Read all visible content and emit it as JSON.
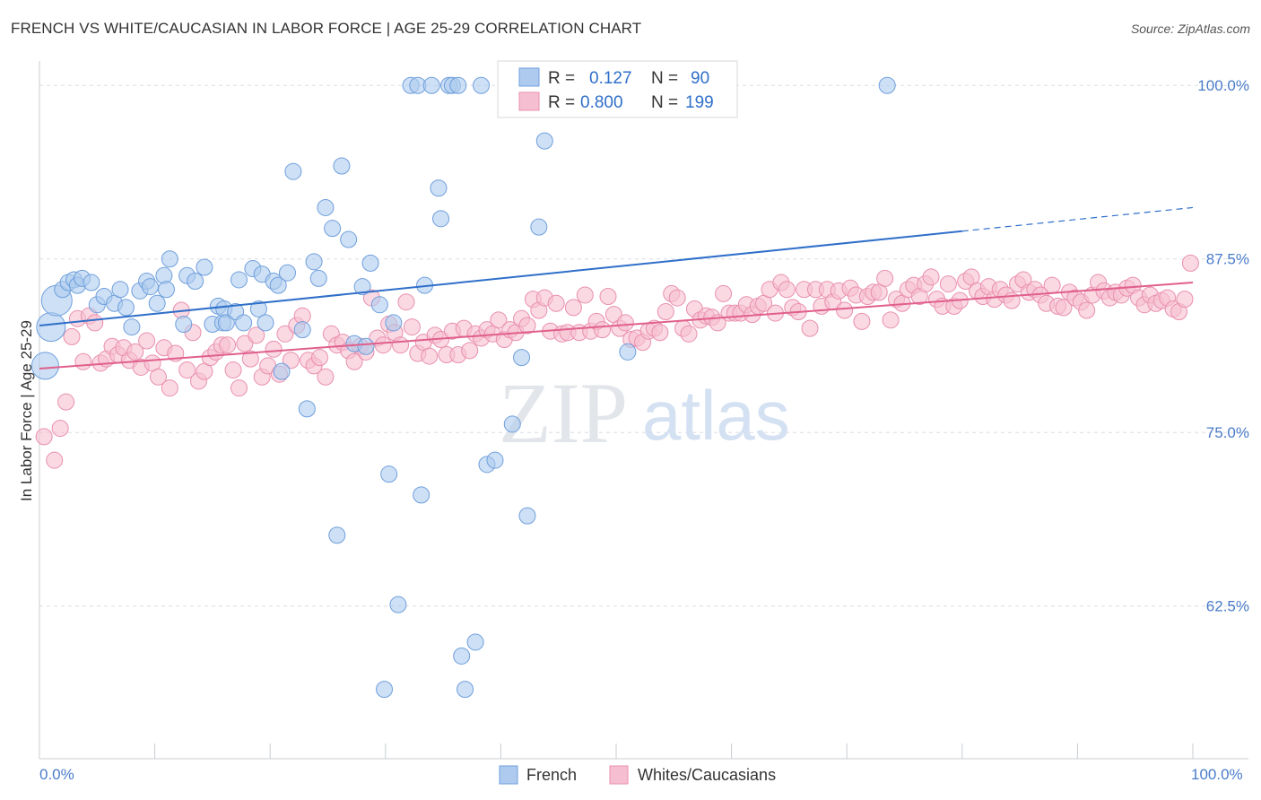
{
  "title": "FRENCH VS WHITE/CAUCASIAN IN LABOR FORCE | AGE 25-29 CORRELATION CHART",
  "source": "Source: ZipAtlas.com",
  "watermark": {
    "zip": "ZIP",
    "atlas": "atlas"
  },
  "colors": {
    "french_fill": "#aecbef",
    "french_stroke": "#6f9fdc",
    "french_line": "#2f6fc9",
    "white_fill": "#f6bfd1",
    "white_stroke": "#e98fae",
    "white_line": "#e05f8c",
    "tick_text": "#4a7cc9",
    "grid": "#d9dde3"
  },
  "legend": {
    "rows": [
      {
        "r_label": "R =",
        "r_value": "0.127",
        "n_label": "N =",
        "n_value": "90"
      },
      {
        "r_label": "R =",
        "r_value": "0.800",
        "n_label": "N =",
        "n_value": "199"
      }
    ]
  },
  "chart_data": {
    "type": "scatter",
    "title": "FRENCH VS WHITE/CAUCASIAN IN LABOR FORCE | AGE 25-29 CORRELATION CHART",
    "xlabel": "",
    "ylabel": "In Labor Force | Age 25-29",
    "xlim": [
      0,
      100
    ],
    "ylim": [
      51.5,
      101.5
    ],
    "x_tick_labels": [
      "0.0%",
      "100.0%"
    ],
    "y_ticks": [
      62.5,
      75.0,
      87.5,
      100.0
    ],
    "y_tick_labels": [
      "62.5%",
      "75.0%",
      "87.5%",
      "100.0%"
    ],
    "grid": true,
    "legend_position": "top-center and bottom",
    "series": [
      {
        "name": "French",
        "r": 0.127,
        "n": 90,
        "trend": {
          "x0": 0,
          "y0": 82.7,
          "x1": 80,
          "y1": 89.5,
          "dashed_to_x": 100,
          "dashed_to_y": 91.2
        },
        "points": [
          [
            0.5,
            79.8
          ],
          [
            1,
            82.6
          ],
          [
            1.5,
            84.5
          ],
          [
            2,
            85.3
          ],
          [
            2.5,
            85.8
          ],
          [
            3,
            86
          ],
          [
            3.3,
            85.6
          ],
          [
            3.7,
            86.1
          ],
          [
            4.5,
            85.8
          ],
          [
            5,
            84.2
          ],
          [
            5.6,
            84.8
          ],
          [
            6.5,
            84.3
          ],
          [
            7,
            85.3
          ],
          [
            7.5,
            84
          ],
          [
            8,
            82.6
          ],
          [
            8.7,
            85.2
          ],
          [
            9.3,
            85.9
          ],
          [
            9.6,
            85.5
          ],
          [
            10.2,
            84.3
          ],
          [
            10.8,
            86.3
          ],
          [
            11,
            85.3
          ],
          [
            11.3,
            87.5
          ],
          [
            12.5,
            82.8
          ],
          [
            12.8,
            86.3
          ],
          [
            13.5,
            85.9
          ],
          [
            14.3,
            86.9
          ],
          [
            15,
            82.8
          ],
          [
            15.5,
            84.1
          ],
          [
            15.9,
            82.9
          ],
          [
            16,
            83.9
          ],
          [
            16.2,
            82.9
          ],
          [
            17,
            83.7
          ],
          [
            17.3,
            86
          ],
          [
            17.7,
            82.9
          ],
          [
            18.5,
            86.8
          ],
          [
            19,
            83.9
          ],
          [
            19.3,
            86.4
          ],
          [
            19.6,
            82.9
          ],
          [
            20.3,
            85.9
          ],
          [
            20.7,
            85.6
          ],
          [
            21,
            79.4
          ],
          [
            21.5,
            86.5
          ],
          [
            22,
            93.8
          ],
          [
            22.8,
            82.4
          ],
          [
            23.2,
            76.7
          ],
          [
            23.8,
            87.3
          ],
          [
            24.2,
            86.1
          ],
          [
            24.8,
            91.2
          ],
          [
            25.4,
            89.7
          ],
          [
            25.8,
            67.6
          ],
          [
            26.2,
            94.2
          ],
          [
            26.8,
            88.9
          ],
          [
            27.3,
            81.4
          ],
          [
            28,
            85.5
          ],
          [
            28.3,
            81.2
          ],
          [
            28.7,
            87.2
          ],
          [
            29.5,
            84.2
          ],
          [
            29.9,
            56.5
          ],
          [
            30.3,
            72
          ],
          [
            30.7,
            82.9
          ],
          [
            31.1,
            62.6
          ],
          [
            32.2,
            100
          ],
          [
            32.8,
            100
          ],
          [
            33.1,
            70.5
          ],
          [
            33.4,
            85.6
          ],
          [
            34,
            100
          ],
          [
            34.6,
            92.6
          ],
          [
            34.8,
            90.4
          ],
          [
            35.5,
            100
          ],
          [
            35.8,
            100
          ],
          [
            36.3,
            100
          ],
          [
            36.6,
            58.9
          ],
          [
            36.9,
            56.5
          ],
          [
            37.8,
            59.9
          ],
          [
            38.3,
            100
          ],
          [
            38.8,
            72.7
          ],
          [
            39.5,
            73
          ],
          [
            40.5,
            100
          ],
          [
            41,
            75.6
          ],
          [
            41.8,
            80.4
          ],
          [
            42.3,
            69
          ],
          [
            42.8,
            100
          ],
          [
            43.3,
            89.8
          ],
          [
            43.8,
            96
          ],
          [
            44.3,
            100
          ],
          [
            45.5,
            100
          ],
          [
            46,
            99.5
          ],
          [
            46.5,
            100
          ],
          [
            51,
            80.8
          ],
          [
            73.5,
            100
          ]
        ]
      },
      {
        "name": "Whites/Caucasians",
        "r": 0.8,
        "n": 199,
        "trend": {
          "x0": 0,
          "y0": 79.6,
          "x1": 100,
          "y1": 85.8
        },
        "points": [
          [
            0.4,
            74.7
          ],
          [
            1.3,
            73
          ],
          [
            1.8,
            75.3
          ],
          [
            2.3,
            77.2
          ],
          [
            2.8,
            81.9
          ],
          [
            3.3,
            83.2
          ],
          [
            3.8,
            80.1
          ],
          [
            4.3,
            83.4
          ],
          [
            4.8,
            82.9
          ],
          [
            5.3,
            80
          ],
          [
            5.8,
            80.3
          ],
          [
            6.3,
            81.2
          ],
          [
            6.8,
            80.6
          ],
          [
            7.3,
            81.1
          ],
          [
            7.8,
            80.2
          ],
          [
            8.3,
            80.8
          ],
          [
            8.8,
            79.7
          ],
          [
            9.3,
            81.6
          ],
          [
            9.8,
            80
          ],
          [
            10.3,
            79
          ],
          [
            10.8,
            81.1
          ],
          [
            11.3,
            78.2
          ],
          [
            11.8,
            80.7
          ],
          [
            12.3,
            83.8
          ],
          [
            12.8,
            79.5
          ],
          [
            13.3,
            82.2
          ],
          [
            13.8,
            78.7
          ],
          [
            14.3,
            79.4
          ],
          [
            14.8,
            80.4
          ],
          [
            15.3,
            80.8
          ],
          [
            15.8,
            81.3
          ],
          [
            16.3,
            81.3
          ],
          [
            16.8,
            79.5
          ],
          [
            17.3,
            78.2
          ],
          [
            17.8,
            81.4
          ],
          [
            18.3,
            80.3
          ],
          [
            18.8,
            82
          ],
          [
            19.3,
            79
          ],
          [
            19.8,
            79.8
          ],
          [
            20.3,
            81
          ],
          [
            20.8,
            79.2
          ],
          [
            21.3,
            82.1
          ],
          [
            21.8,
            80.2
          ],
          [
            22.3,
            82.7
          ],
          [
            22.8,
            83.4
          ],
          [
            23.3,
            80.2
          ],
          [
            23.8,
            79.8
          ],
          [
            24.3,
            80.4
          ],
          [
            24.8,
            79
          ],
          [
            25.3,
            82.1
          ],
          [
            25.8,
            81.3
          ],
          [
            26.3,
            81.5
          ],
          [
            26.8,
            80.9
          ],
          [
            27.3,
            80.1
          ],
          [
            27.8,
            81.2
          ],
          [
            28.3,
            80.8
          ],
          [
            28.8,
            84.7
          ],
          [
            29.3,
            81.8
          ],
          [
            29.8,
            81.3
          ],
          [
            30.3,
            82.8
          ],
          [
            30.8,
            82.2
          ],
          [
            31.3,
            81.3
          ],
          [
            31.8,
            84.4
          ],
          [
            32.3,
            82.6
          ],
          [
            32.8,
            80.7
          ],
          [
            33.3,
            81.5
          ],
          [
            33.8,
            80.5
          ],
          [
            34.3,
            82
          ],
          [
            34.8,
            81.7
          ],
          [
            35.3,
            80.6
          ],
          [
            35.8,
            82.3
          ],
          [
            36.3,
            80.6
          ],
          [
            36.8,
            82.5
          ],
          [
            37.3,
            80.9
          ],
          [
            37.8,
            82.1
          ],
          [
            38.3,
            81.8
          ],
          [
            38.8,
            82.4
          ],
          [
            39.3,
            82.1
          ],
          [
            39.8,
            83.1
          ],
          [
            40.3,
            81.7
          ],
          [
            40.8,
            82.4
          ],
          [
            41.3,
            82.2
          ],
          [
            41.8,
            83.2
          ],
          [
            42.3,
            82.7
          ],
          [
            42.8,
            84.6
          ],
          [
            43.3,
            83.8
          ],
          [
            43.8,
            84.7
          ],
          [
            44.3,
            82.3
          ],
          [
            44.8,
            84.3
          ],
          [
            45.3,
            82.1
          ],
          [
            45.8,
            82.2
          ],
          [
            46.3,
            84
          ],
          [
            46.8,
            82.2
          ],
          [
            47.3,
            84.9
          ],
          [
            47.8,
            82.3
          ],
          [
            48.3,
            83
          ],
          [
            48.8,
            82.4
          ],
          [
            49.3,
            84.8
          ],
          [
            49.8,
            83.5
          ],
          [
            50.3,
            82.5
          ],
          [
            50.8,
            82.9
          ],
          [
            51.3,
            81.7
          ],
          [
            51.8,
            81.8
          ],
          [
            52.3,
            81.5
          ],
          [
            52.8,
            82.3
          ],
          [
            53.3,
            82.5
          ],
          [
            53.8,
            82.2
          ],
          [
            54.3,
            83.7
          ],
          [
            54.8,
            85
          ],
          [
            55.3,
            84.7
          ],
          [
            55.8,
            82.5
          ],
          [
            56.3,
            82.1
          ],
          [
            56.8,
            83.9
          ],
          [
            57.3,
            83.1
          ],
          [
            57.8,
            83.4
          ],
          [
            58.3,
            83.3
          ],
          [
            58.8,
            82.9
          ],
          [
            59.3,
            85
          ],
          [
            59.8,
            83.6
          ],
          [
            60.3,
            83.6
          ],
          [
            60.8,
            83.6
          ],
          [
            61.3,
            84.2
          ],
          [
            61.8,
            83.5
          ],
          [
            62.3,
            84.1
          ],
          [
            62.8,
            84.3
          ],
          [
            63.3,
            85.3
          ],
          [
            63.8,
            83.6
          ],
          [
            64.3,
            85.8
          ],
          [
            64.8,
            85.3
          ],
          [
            65.3,
            84
          ],
          [
            65.8,
            83.7
          ],
          [
            66.3,
            85.3
          ],
          [
            66.8,
            82.5
          ],
          [
            67.3,
            85.3
          ],
          [
            67.8,
            84.1
          ],
          [
            68.3,
            85.3
          ],
          [
            68.8,
            84.4
          ],
          [
            69.3,
            85.2
          ],
          [
            69.8,
            83.8
          ],
          [
            70.3,
            85.4
          ],
          [
            70.8,
            84.9
          ],
          [
            71.3,
            83
          ],
          [
            71.8,
            84.8
          ],
          [
            72.3,
            85.1
          ],
          [
            72.8,
            85.1
          ],
          [
            73.3,
            86.1
          ],
          [
            73.8,
            83.1
          ],
          [
            74.3,
            84.6
          ],
          [
            74.8,
            84.3
          ],
          [
            75.3,
            85.3
          ],
          [
            75.8,
            85.6
          ],
          [
            76.3,
            84.8
          ],
          [
            76.8,
            85.7
          ],
          [
            77.3,
            86.2
          ],
          [
            77.8,
            84.6
          ],
          [
            78.3,
            84.1
          ],
          [
            78.8,
            85.7
          ],
          [
            79.3,
            84.1
          ],
          [
            79.8,
            84.5
          ],
          [
            80.3,
            85.9
          ],
          [
            80.8,
            86.2
          ],
          [
            81.3,
            85.2
          ],
          [
            81.8,
            84.8
          ],
          [
            82.3,
            85.5
          ],
          [
            82.8,
            84.6
          ],
          [
            83.3,
            85.3
          ],
          [
            83.8,
            84.9
          ],
          [
            84.3,
            84.5
          ],
          [
            84.8,
            85.7
          ],
          [
            85.3,
            86
          ],
          [
            85.8,
            85.1
          ],
          [
            86.3,
            85.3
          ],
          [
            86.8,
            84.9
          ],
          [
            87.3,
            84.3
          ],
          [
            87.8,
            85.6
          ],
          [
            88.3,
            84.1
          ],
          [
            88.8,
            84
          ],
          [
            89.3,
            85.1
          ],
          [
            89.8,
            84.7
          ],
          [
            90.3,
            84.4
          ],
          [
            90.8,
            83.8
          ],
          [
            91.3,
            84.9
          ],
          [
            91.8,
            85.8
          ],
          [
            92.3,
            85.2
          ],
          [
            92.8,
            84.7
          ],
          [
            93.3,
            85.1
          ],
          [
            93.8,
            84.9
          ],
          [
            94.3,
            85.4
          ],
          [
            94.8,
            85.6
          ],
          [
            95.3,
            84.7
          ],
          [
            95.8,
            84.2
          ],
          [
            96.3,
            84.9
          ],
          [
            96.8,
            84.3
          ],
          [
            97.3,
            84.5
          ],
          [
            97.8,
            84.7
          ],
          [
            98.3,
            83.9
          ],
          [
            98.8,
            83.7
          ],
          [
            99.3,
            84.6
          ],
          [
            99.8,
            87.2
          ]
        ]
      }
    ]
  },
  "bottom_legend": {
    "items": [
      "French",
      "Whites/Caucasians"
    ]
  }
}
